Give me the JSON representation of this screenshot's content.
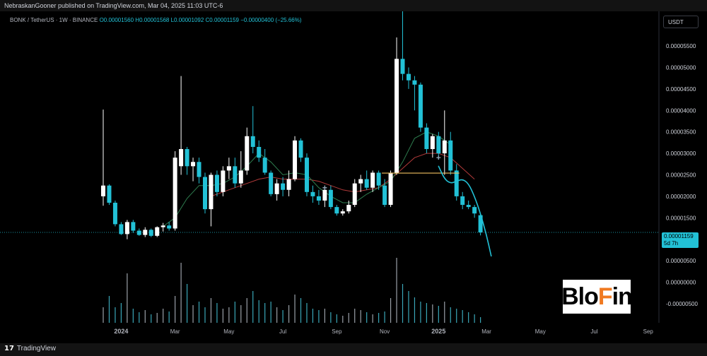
{
  "header": {
    "publisher": "NebraskanGooner published on TradingView.com, Mar 04, 2025 11:03 UTC-6"
  },
  "symbol": {
    "name": "BONK / TetherUS · 1W · BINANCE",
    "open": "O0.00001560",
    "high": "H0.00001568",
    "low": "L0.00001092",
    "close": "C0.00001159",
    "change": "−0.00000400 (−25.66%)"
  },
  "currency_button": "USDT",
  "last_price": {
    "value": "0.00001159",
    "countdown": "5d 7h"
  },
  "footer": {
    "logo_text": "TradingView",
    "logo_mark": "17"
  },
  "watermark": {
    "pre": "Blo",
    "accent": "F",
    "post": "in"
  },
  "colors": {
    "up": "#ffffff",
    "down": "#22c1d6",
    "ma_green": "#2e7d4f",
    "ma_red": "#b23a3a",
    "projection": "#22c1d6",
    "level": "#f0c060"
  },
  "chart_data": {
    "type": "candlestick",
    "title": "",
    "xlabel": "",
    "ylabel": "",
    "ylim": [
      -7e-06,
      6e-05
    ],
    "y_tick_labels": [
      "0.00005500",
      "0.00005000",
      "0.00004500",
      "0.00004000",
      "0.00003500",
      "0.00003000",
      "0.00002500",
      "0.00002000",
      "0.00001500",
      "0.00000500",
      "0.00000000",
      "-0.00000500"
    ],
    "y_tick_values": [
      5.5e-05,
      5e-05,
      4.5e-05,
      4e-05,
      3.5e-05,
      3e-05,
      2.5e-05,
      2e-05,
      1.5e-05,
      5e-06,
      0,
      -5e-06
    ],
    "x_tick_labels": [
      "2024",
      "Mar",
      "May",
      "Jul",
      "Sep",
      "Nov",
      "2025",
      "Mar",
      "May",
      "Jul",
      "Sep"
    ],
    "x_tick_weeks": [
      3,
      12,
      21,
      30,
      39,
      47,
      56,
      64,
      73,
      82,
      91
    ],
    "candles": [
      {
        "w": 0,
        "o": 2e-05,
        "h": 4.02e-05,
        "l": 1.78e-05,
        "c": 2.25e-05
      },
      {
        "w": 1,
        "o": 2.25e-05,
        "h": 2.28e-05,
        "l": 1.8e-05,
        "c": 1.85e-05
      },
      {
        "w": 2,
        "o": 1.85e-05,
        "h": 1.9e-05,
        "l": 1.3e-05,
        "c": 1.35e-05
      },
      {
        "w": 3,
        "o": 1.35e-05,
        "h": 1.4e-05,
        "l": 1.1e-05,
        "c": 1.12e-05
      },
      {
        "w": 4,
        "o": 1.12e-05,
        "h": 1.45e-05,
        "l": 1e-05,
        "c": 1.4e-05
      },
      {
        "w": 5,
        "o": 1.4e-05,
        "h": 1.45e-05,
        "l": 1.15e-05,
        "c": 1.2e-05
      },
      {
        "w": 6,
        "o": 1.2e-05,
        "h": 1.25e-05,
        "l": 1.08e-05,
        "c": 1.1e-05
      },
      {
        "w": 7,
        "o": 1.1e-05,
        "h": 1.28e-05,
        "l": 1.05e-05,
        "c": 1.22e-05
      },
      {
        "w": 8,
        "o": 1.22e-05,
        "h": 1.25e-05,
        "l": 1.05e-05,
        "c": 1.08e-05
      },
      {
        "w": 9,
        "o": 1.08e-05,
        "h": 1.3e-05,
        "l": 1.05e-05,
        "c": 1.28e-05
      },
      {
        "w": 10,
        "o": 1.28e-05,
        "h": 1.38e-05,
        "l": 1.18e-05,
        "c": 1.32e-05
      },
      {
        "w": 11,
        "o": 1.32e-05,
        "h": 1.4e-05,
        "l": 1.2e-05,
        "c": 1.25e-05
      },
      {
        "w": 12,
        "o": 1.25e-05,
        "h": 3.05e-05,
        "l": 1.2e-05,
        "c": 2.9e-05
      },
      {
        "w": 13,
        "o": 2.7e-05,
        "h": 4.8e-05,
        "l": 2.5e-05,
        "c": 3.1e-05
      },
      {
        "w": 14,
        "o": 3.1e-05,
        "h": 3.15e-05,
        "l": 2.5e-05,
        "c": 2.7e-05
      },
      {
        "w": 15,
        "o": 2.7e-05,
        "h": 2.9e-05,
        "l": 2.35e-05,
        "c": 2.8e-05
      },
      {
        "w": 16,
        "o": 2.8e-05,
        "h": 2.9e-05,
        "l": 2.3e-05,
        "c": 2.45e-05
      },
      {
        "w": 17,
        "o": 2.45e-05,
        "h": 2.55e-05,
        "l": 1.6e-05,
        "c": 1.7e-05
      },
      {
        "w": 18,
        "o": 1.7e-05,
        "h": 2.55e-05,
        "l": 1.3e-05,
        "c": 2.5e-05
      },
      {
        "w": 19,
        "o": 2.5e-05,
        "h": 2.6e-05,
        "l": 2e-05,
        "c": 2.1e-05
      },
      {
        "w": 20,
        "o": 2.1e-05,
        "h": 2.7e-05,
        "l": 2e-05,
        "c": 2.6e-05
      },
      {
        "w": 21,
        "o": 2.6e-05,
        "h": 2.9e-05,
        "l": 2.4e-05,
        "c": 2.7e-05
      },
      {
        "w": 22,
        "o": 2.7e-05,
        "h": 2.9e-05,
        "l": 2.2e-05,
        "c": 2.3e-05
      },
      {
        "w": 23,
        "o": 2.3e-05,
        "h": 3.05e-05,
        "l": 2.2e-05,
        "c": 2.6e-05
      },
      {
        "w": 24,
        "o": 2.6e-05,
        "h": 3.6e-05,
        "l": 2.5e-05,
        "c": 3.4e-05
      },
      {
        "w": 25,
        "o": 3.4e-05,
        "h": 4.1e-05,
        "l": 3e-05,
        "c": 3.15e-05
      },
      {
        "w": 26,
        "o": 3.15e-05,
        "h": 3.3e-05,
        "l": 2.8e-05,
        "c": 2.9e-05
      },
      {
        "w": 27,
        "o": 2.9e-05,
        "h": 3.1e-05,
        "l": 2.5e-05,
        "c": 2.55e-05
      },
      {
        "w": 28,
        "o": 2.55e-05,
        "h": 2.6e-05,
        "l": 2e-05,
        "c": 2.05e-05
      },
      {
        "w": 29,
        "o": 2.05e-05,
        "h": 2.4e-05,
        "l": 1.9e-05,
        "c": 2.3e-05
      },
      {
        "w": 30,
        "o": 2.3e-05,
        "h": 2.45e-05,
        "l": 2e-05,
        "c": 2.15e-05
      },
      {
        "w": 31,
        "o": 2.15e-05,
        "h": 2.6e-05,
        "l": 2e-05,
        "c": 2.4e-05
      },
      {
        "w": 32,
        "o": 2.4e-05,
        "h": 3.4e-05,
        "l": 2.35e-05,
        "c": 3.3e-05
      },
      {
        "w": 33,
        "o": 3.3e-05,
        "h": 3.35e-05,
        "l": 2.8e-05,
        "c": 2.9e-05
      },
      {
        "w": 34,
        "o": 2.9e-05,
        "h": 3e-05,
        "l": 2e-05,
        "c": 2.1e-05
      },
      {
        "w": 35,
        "o": 2.1e-05,
        "h": 2.25e-05,
        "l": 1.85e-05,
        "c": 2e-05
      },
      {
        "w": 36,
        "o": 2e-05,
        "h": 2.15e-05,
        "l": 1.8e-05,
        "c": 1.9e-05
      },
      {
        "w": 37,
        "o": 1.9e-05,
        "h": 2.25e-05,
        "l": 1.75e-05,
        "c": 2.15e-05
      },
      {
        "w": 38,
        "o": 2.15e-05,
        "h": 2.25e-05,
        "l": 1.7e-05,
        "c": 1.75e-05
      },
      {
        "w": 39,
        "o": 1.75e-05,
        "h": 1.8e-05,
        "l": 1.55e-05,
        "c": 1.6e-05
      },
      {
        "w": 40,
        "o": 1.6e-05,
        "h": 1.7e-05,
        "l": 1.55e-05,
        "c": 1.65e-05
      },
      {
        "w": 41,
        "o": 1.65e-05,
        "h": 1.9e-05,
        "l": 1.6e-05,
        "c": 1.8e-05
      },
      {
        "w": 42,
        "o": 1.8e-05,
        "h": 2.4e-05,
        "l": 1.75e-05,
        "c": 2.3e-05
      },
      {
        "w": 43,
        "o": 2.3e-05,
        "h": 2.5e-05,
        "l": 2.1e-05,
        "c": 2.4e-05
      },
      {
        "w": 44,
        "o": 2.4e-05,
        "h": 2.6e-05,
        "l": 2.15e-05,
        "c": 2.2e-05
      },
      {
        "w": 45,
        "o": 2.2e-05,
        "h": 2.6e-05,
        "l": 2.1e-05,
        "c": 2.55e-05
      },
      {
        "w": 46,
        "o": 2.55e-05,
        "h": 2.6e-05,
        "l": 2.15e-05,
        "c": 2.25e-05
      },
      {
        "w": 47,
        "o": 2.25e-05,
        "h": 2.4e-05,
        "l": 1.75e-05,
        "c": 1.8e-05
      },
      {
        "w": 48,
        "o": 1.8e-05,
        "h": 2.6e-05,
        "l": 1.75e-05,
        "c": 2.55e-05
      },
      {
        "w": 49,
        "o": 2.55e-05,
        "h": 5.7e-05,
        "l": 2.5e-05,
        "c": 5.2e-05
      },
      {
        "w": 50,
        "o": 5.2e-05,
        "h": 6.45e-05,
        "l": 4.7e-05,
        "c": 4.85e-05
      },
      {
        "w": 51,
        "o": 4.85e-05,
        "h": 5e-05,
        "l": 4.5e-05,
        "c": 4.7e-05
      },
      {
        "w": 52,
        "o": 4.7e-05,
        "h": 4.8e-05,
        "l": 4e-05,
        "c": 4.6e-05
      },
      {
        "w": 53,
        "o": 4.6e-05,
        "h": 4.65e-05,
        "l": 3.5e-05,
        "c": 3.6e-05
      },
      {
        "w": 54,
        "o": 3.6e-05,
        "h": 3.7e-05,
        "l": 3e-05,
        "c": 3.1e-05
      },
      {
        "w": 55,
        "o": 3.1e-05,
        "h": 3.45e-05,
        "l": 2.9e-05,
        "c": 3.4e-05
      },
      {
        "w": 56,
        "o": 3.4e-05,
        "h": 3.5e-05,
        "l": 2.9e-05,
        "c": 3e-05
      },
      {
        "w": 57,
        "o": 3e-05,
        "h": 4e-05,
        "l": 2.5e-05,
        "c": 3.3e-05
      },
      {
        "w": 58,
        "o": 3.3e-05,
        "h": 3.5e-05,
        "l": 2.5e-05,
        "c": 2.6e-05
      },
      {
        "w": 59,
        "o": 2.6e-05,
        "h": 2.75e-05,
        "l": 1.9e-05,
        "c": 2e-05
      },
      {
        "w": 60,
        "o": 2e-05,
        "h": 2.1e-05,
        "l": 1.7e-05,
        "c": 1.8e-05
      },
      {
        "w": 61,
        "o": 1.8e-05,
        "h": 1.9e-05,
        "l": 1.7e-05,
        "c": 1.75e-05
      },
      {
        "w": 62,
        "o": 1.75e-05,
        "h": 1.8e-05,
        "l": 1.5e-05,
        "c": 1.6e-05
      },
      {
        "w": 63,
        "o": 1.56e-05,
        "h": 1.57e-05,
        "l": 1.09e-05,
        "c": 1.16e-05
      }
    ],
    "ma_green": [
      [
        10,
        1.3e-05
      ],
      [
        12,
        1.5e-05
      ],
      [
        14,
        1.95e-05
      ],
      [
        16,
        2.25e-05
      ],
      [
        18,
        2.25e-05
      ],
      [
        20,
        2.3e-05
      ],
      [
        22,
        2.45e-05
      ],
      [
        24,
        2.7e-05
      ],
      [
        26,
        3e-05
      ],
      [
        28,
        2.8e-05
      ],
      [
        30,
        2.5e-05
      ],
      [
        32,
        2.55e-05
      ],
      [
        34,
        2.5e-05
      ],
      [
        36,
        2.2e-05
      ],
      [
        38,
        2e-05
      ],
      [
        40,
        1.85e-05
      ],
      [
        42,
        1.85e-05
      ],
      [
        44,
        2.05e-05
      ],
      [
        46,
        2.2e-05
      ],
      [
        48,
        2.35e-05
      ],
      [
        50,
        2.8e-05
      ],
      [
        52,
        3.35e-05
      ],
      [
        54,
        3.5e-05
      ],
      [
        56,
        3.4e-05
      ],
      [
        58,
        3.2e-05
      ]
    ],
    "ma_red": [
      [
        18,
        2e-05
      ],
      [
        20,
        2.1e-05
      ],
      [
        22,
        2.2e-05
      ],
      [
        24,
        2.3e-05
      ],
      [
        26,
        2.4e-05
      ],
      [
        28,
        2.45e-05
      ],
      [
        30,
        2.4e-05
      ],
      [
        32,
        2.4e-05
      ],
      [
        34,
        2.4e-05
      ],
      [
        36,
        2.35e-05
      ],
      [
        38,
        2.25e-05
      ],
      [
        40,
        2.15e-05
      ],
      [
        42,
        2.1e-05
      ],
      [
        44,
        2.15e-05
      ],
      [
        46,
        2.2e-05
      ],
      [
        48,
        2.4e-05
      ],
      [
        50,
        2.65e-05
      ],
      [
        52,
        2.9e-05
      ],
      [
        54,
        3e-05
      ],
      [
        56,
        3e-05
      ],
      [
        58,
        2.9e-05
      ],
      [
        60,
        2.65e-05
      ],
      [
        62,
        2.4e-05
      ]
    ],
    "projection": [
      [
        56,
        2.7e-05
      ],
      [
        57,
        2.4e-05
      ],
      [
        58,
        2.3e-05
      ],
      [
        59,
        2.35e-05
      ],
      [
        60,
        2.4e-05
      ],
      [
        61,
        2.3e-05
      ],
      [
        62,
        2e-05
      ],
      [
        63,
        1.6e-05
      ],
      [
        64,
        1.1e-05
      ],
      [
        64.8,
        6e-06
      ]
    ],
    "level_line": {
      "from_week": 47,
      "to_week": 59,
      "value": 2.54e-05
    },
    "volume": [
      0.22,
      0.38,
      0.22,
      0.28,
      0.7,
      0.2,
      0.15,
      0.18,
      0.12,
      0.14,
      0.2,
      0.16,
      0.38,
      0.85,
      0.55,
      0.25,
      0.3,
      0.22,
      0.35,
      0.28,
      0.2,
      0.22,
      0.3,
      0.25,
      0.35,
      0.45,
      0.32,
      0.28,
      0.3,
      0.22,
      0.18,
      0.25,
      0.4,
      0.35,
      0.28,
      0.2,
      0.18,
      0.2,
      0.15,
      0.12,
      0.1,
      0.14,
      0.2,
      0.18,
      0.15,
      0.12,
      0.14,
      0.16,
      0.35,
      0.92,
      0.55,
      0.45,
      0.36,
      0.3,
      0.28,
      0.26,
      0.24,
      0.3,
      0.22,
      0.2,
      0.18,
      0.15,
      0.12,
      0.08
    ]
  }
}
